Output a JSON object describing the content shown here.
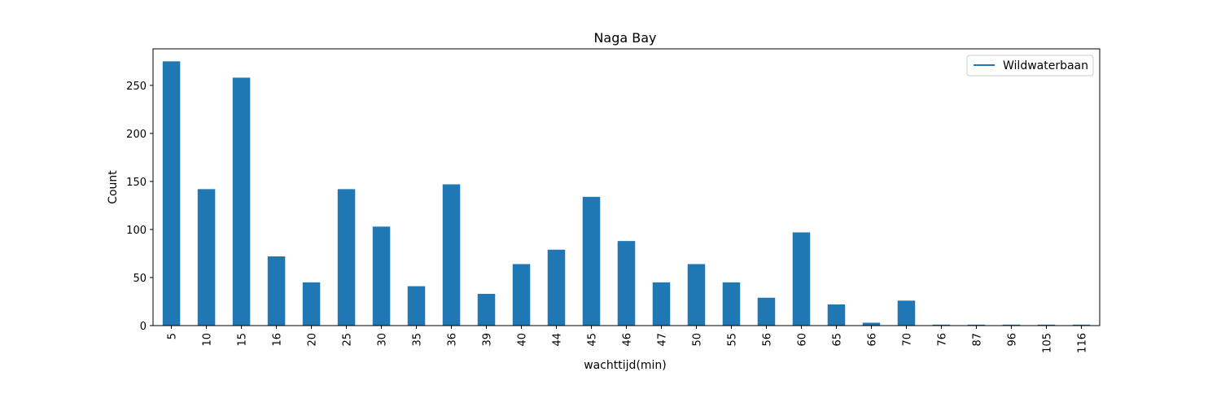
{
  "chart_data": {
    "type": "bar",
    "title": "Naga Bay",
    "xlabel": "wachttijd(min)",
    "ylabel": "Count",
    "categories": [
      "5",
      "10",
      "15",
      "16",
      "20",
      "25",
      "30",
      "35",
      "36",
      "39",
      "40",
      "44",
      "45",
      "46",
      "47",
      "50",
      "55",
      "56",
      "60",
      "65",
      "66",
      "70",
      "76",
      "87",
      "96",
      "105",
      "116"
    ],
    "series": [
      {
        "name": "Wildwaterbaan",
        "values": [
          275,
          142,
          258,
          72,
          45,
          142,
          103,
          41,
          147,
          33,
          64,
          79,
          134,
          88,
          45,
          64,
          45,
          29,
          97,
          22,
          3,
          26,
          1,
          1,
          1,
          1,
          1
        ]
      }
    ],
    "ylim": [
      0,
      288
    ],
    "yticks": [
      0,
      50,
      100,
      150,
      200,
      250
    ],
    "grid": false,
    "legend_position": "top-right",
    "bar_color": "#1f77b4"
  }
}
